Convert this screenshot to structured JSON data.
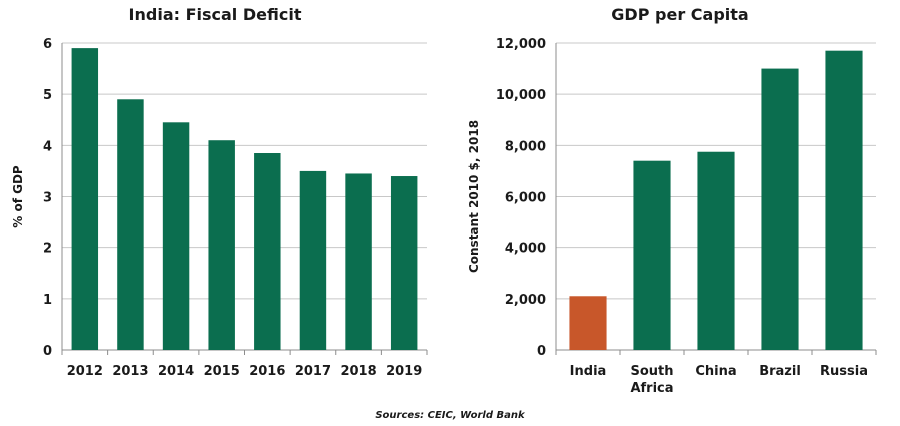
{
  "chart_data": [
    {
      "type": "bar",
      "title": "India: Fiscal Deficit",
      "ylabel": "% of GDP",
      "xlabel": "",
      "categories": [
        "2012",
        "2013",
        "2014",
        "2015",
        "2016",
        "2017",
        "2018",
        "2019"
      ],
      "values": [
        5.9,
        4.9,
        4.45,
        4.1,
        3.85,
        3.5,
        3.45,
        3.4
      ],
      "ylim": [
        0,
        6
      ],
      "yticks": [
        0,
        1,
        2,
        3,
        4,
        5,
        6
      ],
      "ytick_labels": [
        "0",
        "1",
        "2",
        "3",
        "4",
        "5",
        "6"
      ],
      "grid": true,
      "bar_colors": [
        "#0b6e4f",
        "#0b6e4f",
        "#0b6e4f",
        "#0b6e4f",
        "#0b6e4f",
        "#0b6e4f",
        "#0b6e4f",
        "#0b6e4f"
      ]
    },
    {
      "type": "bar",
      "title": "GDP per Capita",
      "ylabel": "Constant 2010 $, 2018",
      "xlabel": "",
      "categories": [
        "India",
        "South Africa",
        "China",
        "Brazil",
        "Russia"
      ],
      "category_lines": [
        [
          "India"
        ],
        [
          "South",
          "Africa"
        ],
        [
          "China"
        ],
        [
          "Brazil"
        ],
        [
          "Russia"
        ]
      ],
      "values": [
        2100,
        7400,
        7750,
        11000,
        11700
      ],
      "ylim": [
        0,
        12000
      ],
      "yticks": [
        0,
        2000,
        4000,
        6000,
        8000,
        10000,
        12000
      ],
      "ytick_labels": [
        "0",
        "2,000",
        "4,000",
        "6,000",
        "8,000",
        "10,000",
        "12,000"
      ],
      "grid": true,
      "bar_colors": [
        "#c8572a",
        "#0b6e4f",
        "#0b6e4f",
        "#0b6e4f",
        "#0b6e4f"
      ]
    }
  ],
  "source": "Sources: CEIC, World Bank"
}
